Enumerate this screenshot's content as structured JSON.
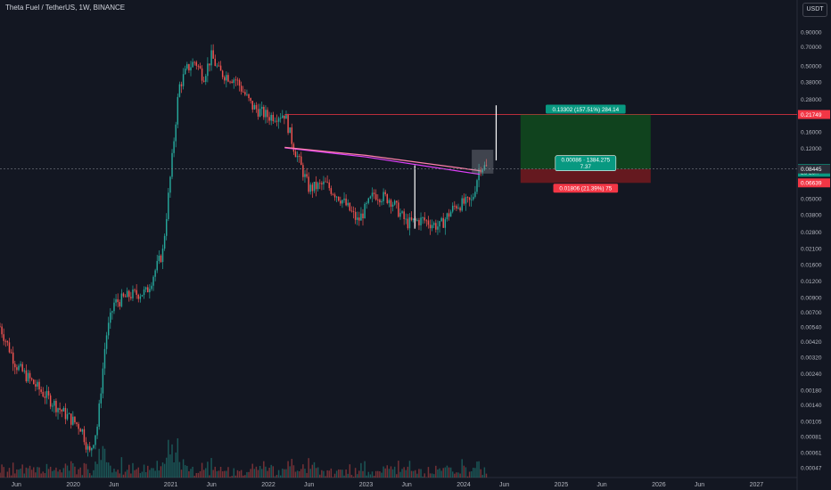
{
  "header": {
    "symbol_title": "Theta Fuel / TetherUS, 1W, BINANCE"
  },
  "currency_button": "USDT",
  "colors": {
    "up": "#26a69a",
    "down": "#ef5350",
    "ma": "#e040fb",
    "profit": "#0e7a1b",
    "loss": "#b71c1c",
    "bg": "#131722"
  },
  "chart_data": {
    "type": "candlestick",
    "title": "Theta Fuel / TetherUS, 1W, BINANCE",
    "y_scale": "log",
    "ylim": [
      0.0004,
      1.2
    ],
    "y_ticks": [
      "0.90000",
      "0.70000",
      "0.50000",
      "0.38000",
      "0.28000",
      "0.21747",
      "0.21749",
      "0.16000",
      "0.12000",
      "0.08531",
      "2d 23h",
      "0.08445",
      "0.05000",
      "0.03800",
      "0.02800",
      "0.02100",
      "0.01600",
      "0.01200",
      "0.00900",
      "0.00700",
      "0.00540",
      "0.00420",
      "0.00320",
      "0.00240",
      "0.00180",
      "0.00140",
      "0.00105",
      "0.00081",
      "0.00061",
      "0.00047"
    ],
    "x_ticks": [
      "Jun",
      "2020",
      "Jun",
      "2021",
      "Jun",
      "2022",
      "Jun",
      "2023",
      "Jun",
      "2024",
      "Jun",
      "2025",
      "Jun",
      "2026",
      "Jun",
      "2027"
    ],
    "x_range": [
      "2019-04",
      "2027-06"
    ],
    "price_path": [
      [
        "2019-04",
        0.0055
      ],
      [
        "2019-06",
        0.0028
      ],
      [
        "2019-09",
        0.0018
      ],
      [
        "2019-12",
        0.0012
      ],
      [
        "2020-02",
        0.00095
      ],
      [
        "2020-03",
        0.0006
      ],
      [
        "2020-04",
        0.001
      ],
      [
        "2020-05",
        0.0045
      ],
      [
        "2020-06",
        0.0082
      ],
      [
        "2020-08",
        0.0095
      ],
      [
        "2020-10",
        0.01
      ],
      [
        "2020-12",
        0.02
      ],
      [
        "2021-01",
        0.08
      ],
      [
        "2021-02",
        0.35
      ],
      [
        "2021-03",
        0.48
      ],
      [
        "2021-04",
        0.55
      ],
      [
        "2021-05",
        0.42
      ],
      [
        "2021-06",
        0.6
      ],
      [
        "2021-07",
        0.45
      ],
      [
        "2021-09",
        0.4
      ],
      [
        "2021-11",
        0.25
      ],
      [
        "2022-01",
        0.21
      ],
      [
        "2022-03",
        0.22
      ],
      [
        "2022-04",
        0.13
      ],
      [
        "2022-06",
        0.06
      ],
      [
        "2022-08",
        0.065
      ],
      [
        "2022-10",
        0.05
      ],
      [
        "2022-12",
        0.034
      ],
      [
        "2023-02",
        0.055
      ],
      [
        "2023-04",
        0.05
      ],
      [
        "2023-06",
        0.033
      ],
      [
        "2023-08",
        0.035
      ],
      [
        "2023-10",
        0.031
      ],
      [
        "2023-12",
        0.045
      ],
      [
        "2024-02",
        0.048
      ],
      [
        "2024-03",
        0.09
      ],
      [
        "2024-04",
        0.0853
      ]
    ],
    "moving_averages": [
      {
        "name": "",
        "points": [
          [
            "2022-03",
            0.122
          ],
          [
            "2023-01",
            0.104
          ],
          [
            "2024-03",
            0.077
          ]
        ]
      },
      {
        "name": "",
        "points": [
          [
            "2022-03",
            0.123
          ],
          [
            "2023-01",
            0.107
          ],
          [
            "2024-03",
            0.082
          ]
        ]
      }
    ],
    "position_tool": {
      "entry": 0.08445,
      "target": 0.21747,
      "stop": 0.06639,
      "target_label": "0.13302 (157.51%) 284.14",
      "center_label_line1": "0.00086 · 1384.275",
      "center_label_line2": "7.37",
      "stop_label": "0.01806 (21.39%) 75"
    },
    "price_tags": [
      {
        "text": "0.21747",
        "value": 0.21747,
        "color": "#089981"
      },
      {
        "text": "0.21749",
        "value": 0.21749,
        "color": "#f23645"
      },
      {
        "text": "0.08531",
        "value": 0.08531,
        "color": "#089981"
      },
      {
        "text": "2d 23h",
        "value": 0.0798,
        "color": "#089981"
      },
      {
        "text": "0.08445",
        "value": 0.08445,
        "color": "#2a2e39"
      },
      {
        "text": "0.06639",
        "value": 0.06639,
        "color": "#f23645"
      }
    ],
    "horizontal_line": {
      "value": 0.2175,
      "color": "#f23645"
    },
    "volume_note": "volume histogram at bottom"
  }
}
